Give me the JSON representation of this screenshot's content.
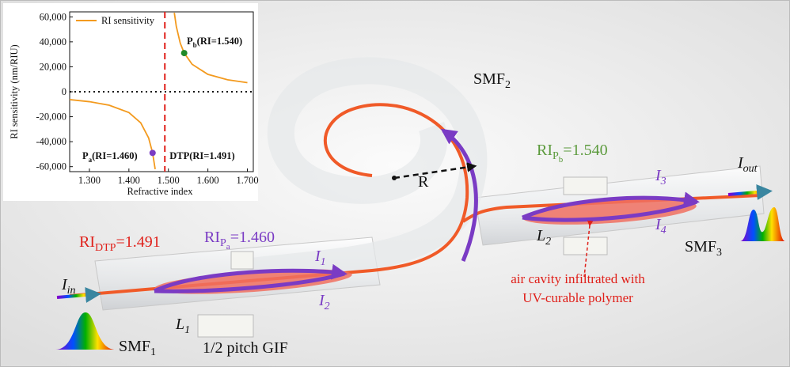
{
  "chart_data": {
    "type": "line",
    "x_label": "Refractive index",
    "y_label": "RI sensitivity (nm/RIU)",
    "xlim": [
      1.25,
      1.715
    ],
    "ylim": [
      -64000,
      64000
    ],
    "xticks": [
      {
        "value": 1.3,
        "label": "1.300"
      },
      {
        "value": 1.4,
        "label": "1.400"
      },
      {
        "value": 1.5,
        "label": "1.500"
      },
      {
        "value": 1.6,
        "label": "1.600"
      },
      {
        "value": 1.7,
        "label": "1.700"
      }
    ],
    "yticks": [
      {
        "value": -60000,
        "label": "-60,000"
      },
      {
        "value": -40000,
        "label": "-40,000"
      },
      {
        "value": -20000,
        "label": "-20,000"
      },
      0,
      {
        "value": 20000,
        "label": "20,000"
      },
      {
        "value": 40000,
        "label": "40,000"
      },
      {
        "value": 60000,
        "label": "60,000"
      }
    ],
    "series": [
      {
        "name": "RI sensitivity",
        "color": "#f39a1e",
        "x": [
          1.25,
          1.3,
          1.35,
          1.4,
          1.43,
          1.45,
          1.46,
          1.4665,
          1.491,
          1.515,
          1.52,
          1.53,
          1.54,
          1.56,
          1.6,
          1.65,
          1.7
        ],
        "values": [
          -6300,
          -7950,
          -10770,
          -16690,
          -24900,
          -37050,
          -49000,
          -62000,
          null,
          63300,
          52380,
          38950,
          31000,
          22010,
          13940,
          9550,
          7270
        ]
      }
    ],
    "hline": 0,
    "vline": {
      "x": 1.491,
      "color": "#e0201a",
      "label": "DTP(RI=1.491)"
    },
    "annotations": [
      {
        "x": 1.46,
        "y": -49000,
        "color": "#7a3bc4",
        "text": "P",
        "sub": "a",
        "rest": "(RI=1.460)"
      },
      {
        "x": 1.54,
        "y": 31000,
        "color": "#1f8a2a",
        "text": "P",
        "sub": "b",
        "rest": "(RI=1.540)"
      }
    ]
  },
  "labels": {
    "smf2": {
      "text": "SMF",
      "sub": "2"
    },
    "r": "R",
    "ri_pb": {
      "text": "RI",
      "sub": "P",
      "subsub": "b",
      "rest": "=1.540"
    },
    "i3": {
      "text": "I",
      "sub": "3"
    },
    "iout": {
      "text": "I",
      "sub": "out"
    },
    "i4": {
      "text": "I",
      "sub": "4"
    },
    "l2": {
      "text": "L",
      "sub": "2"
    },
    "smf3": {
      "text": "SMF",
      "sub": "3"
    },
    "cavity": [
      "air cavity infiltrated with",
      "UV-curable polymer"
    ],
    "ri_dtp": {
      "text": "RI",
      "sub": "DTP",
      "rest": "=1.491"
    },
    "ri_pa": {
      "text": "RI",
      "sub": "P",
      "subsub": "a",
      "rest": "=1.460"
    },
    "i1": {
      "text": "I",
      "sub": "1"
    },
    "i2": {
      "text": "I",
      "sub": "2"
    },
    "iin": {
      "text": "I",
      "sub": "in"
    },
    "l1": {
      "text": "L",
      "sub": "1"
    },
    "gif": "1/2 pitch GIF",
    "smf1": {
      "text": "SMF",
      "sub": "1"
    }
  }
}
